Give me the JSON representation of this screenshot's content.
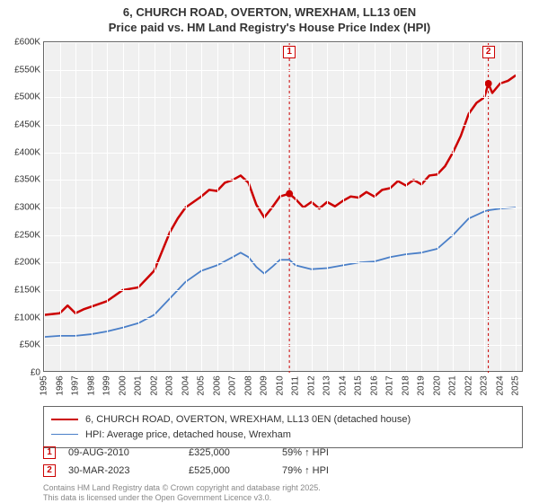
{
  "title": {
    "line1": "6, CHURCH ROAD, OVERTON, WREXHAM, LL13 0EN",
    "line2": "Price paid vs. HM Land Registry's House Price Index (HPI)",
    "fontsize": 13,
    "color": "#333333"
  },
  "chart": {
    "type": "line",
    "background_color": "#f0f0f0",
    "grid_color": "#ffffff",
    "border_color": "#666666",
    "xlim": [
      1995,
      2025.5
    ],
    "ylim": [
      0,
      600
    ],
    "yticks": [
      0,
      50,
      100,
      150,
      200,
      250,
      300,
      350,
      400,
      450,
      500,
      550,
      600
    ],
    "ytick_labels": [
      "£0",
      "£50K",
      "£100K",
      "£150K",
      "£200K",
      "£250K",
      "£300K",
      "£350K",
      "£400K",
      "£450K",
      "£500K",
      "£550K",
      "£600K"
    ],
    "xticks": [
      1995,
      1996,
      1997,
      1998,
      1999,
      2000,
      2001,
      2002,
      2003,
      2004,
      2005,
      2006,
      2007,
      2008,
      2009,
      2010,
      2011,
      2012,
      2013,
      2014,
      2015,
      2016,
      2017,
      2018,
      2019,
      2020,
      2021,
      2022,
      2023,
      2024,
      2025
    ],
    "xtick_labels": [
      "1995",
      "1996",
      "1997",
      "1998",
      "1999",
      "2000",
      "2001",
      "2002",
      "2003",
      "2004",
      "2005",
      "2006",
      "2007",
      "2008",
      "2009",
      "2010",
      "2011",
      "2012",
      "2013",
      "2014",
      "2015",
      "2016",
      "2017",
      "2018",
      "2019",
      "2020",
      "2021",
      "2022",
      "2023",
      "2024",
      "2025"
    ],
    "label_fontsize": 10,
    "series": [
      {
        "name": "6, CHURCH ROAD, OVERTON, WREXHAM, LL13 0EN (detached house)",
        "color": "#cc0000",
        "width": 2.5,
        "data": [
          [
            1995,
            105
          ],
          [
            1996,
            108
          ],
          [
            1996.5,
            122
          ],
          [
            1997,
            108
          ],
          [
            1997.5,
            115
          ],
          [
            1998,
            120
          ],
          [
            1999,
            130
          ],
          [
            2000,
            150
          ],
          [
            2001,
            155
          ],
          [
            2001.5,
            170
          ],
          [
            2002,
            185
          ],
          [
            2002.5,
            220
          ],
          [
            2003,
            255
          ],
          [
            2003.5,
            280
          ],
          [
            2004,
            300
          ],
          [
            2004.5,
            310
          ],
          [
            2005,
            320
          ],
          [
            2005.5,
            332
          ],
          [
            2006,
            330
          ],
          [
            2006.5,
            345
          ],
          [
            2007,
            350
          ],
          [
            2007.5,
            358
          ],
          [
            2008,
            345
          ],
          [
            2008.5,
            305
          ],
          [
            2009,
            282
          ],
          [
            2009.5,
            300
          ],
          [
            2010,
            320
          ],
          [
            2010.6,
            325
          ],
          [
            2011,
            315
          ],
          [
            2011.5,
            300
          ],
          [
            2012,
            310
          ],
          [
            2012.5,
            298
          ],
          [
            2013,
            310
          ],
          [
            2013.5,
            302
          ],
          [
            2014,
            312
          ],
          [
            2014.5,
            320
          ],
          [
            2015,
            318
          ],
          [
            2015.5,
            328
          ],
          [
            2016,
            320
          ],
          [
            2016.5,
            332
          ],
          [
            2017,
            335
          ],
          [
            2017.5,
            348
          ],
          [
            2018,
            340
          ],
          [
            2018.5,
            350
          ],
          [
            2019,
            342
          ],
          [
            2019.5,
            358
          ],
          [
            2020,
            360
          ],
          [
            2020.5,
            375
          ],
          [
            2021,
            400
          ],
          [
            2021.5,
            430
          ],
          [
            2022,
            470
          ],
          [
            2022.5,
            490
          ],
          [
            2023,
            500
          ],
          [
            2023.25,
            525
          ],
          [
            2023.5,
            508
          ],
          [
            2024,
            525
          ],
          [
            2024.5,
            530
          ],
          [
            2025,
            540
          ]
        ]
      },
      {
        "name": "HPI: Average price, detached house, Wrexham",
        "color": "#4a7fc8",
        "width": 1.8,
        "data": [
          [
            1995,
            65
          ],
          [
            1996,
            67
          ],
          [
            1997,
            67
          ],
          [
            1998,
            70
          ],
          [
            1999,
            75
          ],
          [
            2000,
            82
          ],
          [
            2001,
            90
          ],
          [
            2002,
            105
          ],
          [
            2003,
            135
          ],
          [
            2004,
            165
          ],
          [
            2005,
            185
          ],
          [
            2006,
            195
          ],
          [
            2007,
            210
          ],
          [
            2007.5,
            218
          ],
          [
            2008,
            210
          ],
          [
            2008.5,
            192
          ],
          [
            2009,
            180
          ],
          [
            2009.5,
            192
          ],
          [
            2010,
            205
          ],
          [
            2010.6,
            205
          ],
          [
            2011,
            195
          ],
          [
            2012,
            188
          ],
          [
            2013,
            190
          ],
          [
            2014,
            195
          ],
          [
            2015,
            200
          ],
          [
            2016,
            202
          ],
          [
            2017,
            210
          ],
          [
            2018,
            215
          ],
          [
            2019,
            218
          ],
          [
            2020,
            225
          ],
          [
            2021,
            250
          ],
          [
            2022,
            280
          ],
          [
            2023,
            293
          ],
          [
            2023.25,
            295
          ],
          [
            2024,
            298
          ],
          [
            2025,
            300
          ]
        ]
      }
    ],
    "sale_markers": [
      {
        "label": "1",
        "x": 2010.6,
        "y": 325,
        "color": "#cc0000"
      },
      {
        "label": "2",
        "x": 2023.25,
        "y": 525,
        "color": "#cc0000"
      }
    ],
    "vlines": [
      {
        "x": 2010.6,
        "color": "#cc0000"
      },
      {
        "x": 2023.25,
        "color": "#cc0000"
      }
    ]
  },
  "legend": {
    "items": [
      {
        "color": "#cc0000",
        "label": "6, CHURCH ROAD, OVERTON, WREXHAM, LL13 0EN (detached house)"
      },
      {
        "color": "#4a7fc8",
        "label": "HPI: Average price, detached house, Wrexham"
      }
    ]
  },
  "sales": [
    {
      "marker": "1",
      "marker_color": "#cc0000",
      "date": "09-AUG-2010",
      "price": "£325,000",
      "hpi": "59% ↑ HPI"
    },
    {
      "marker": "2",
      "marker_color": "#cc0000",
      "date": "30-MAR-2023",
      "price": "£525,000",
      "hpi": "79% ↑ HPI"
    }
  ],
  "attribution": {
    "line1": "Contains HM Land Registry data © Crown copyright and database right 2025.",
    "line2": "This data is licensed under the Open Government Licence v3.0."
  }
}
